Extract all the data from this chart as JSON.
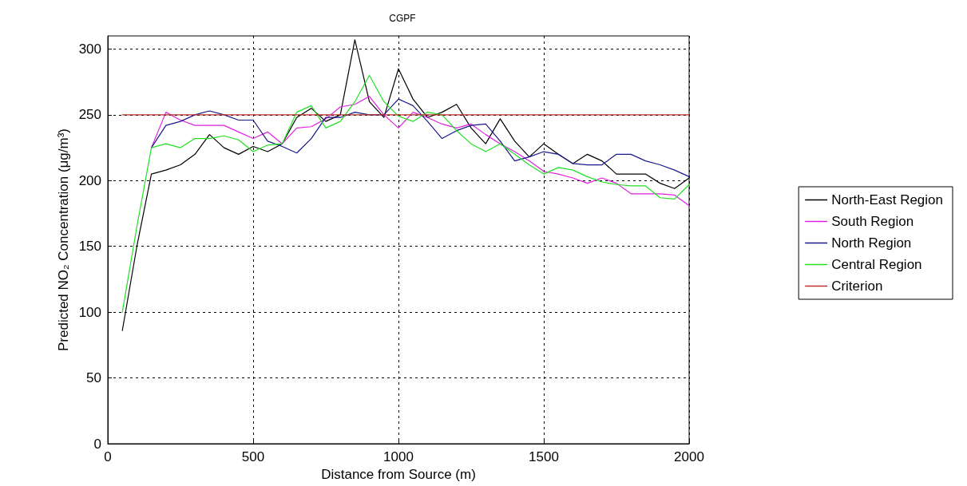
{
  "chart_data": {
    "type": "line",
    "title": "CGPF",
    "xlabel": "Distance from Source (m)",
    "ylabel": "Predicted NO₂ Concentration (μg/m³)",
    "x": [
      50,
      100,
      150,
      200,
      250,
      300,
      350,
      400,
      450,
      500,
      550,
      600,
      650,
      700,
      750,
      800,
      850,
      900,
      950,
      1000,
      1050,
      1100,
      1150,
      1200,
      1250,
      1300,
      1350,
      1400,
      1450,
      1500,
      1550,
      1600,
      1650,
      1700,
      1750,
      1800,
      1850,
      1900,
      1950,
      2000
    ],
    "series": [
      {
        "name": "North-East Region",
        "color": "#000000",
        "values": [
          86,
          150,
          205,
          208,
          212,
          220,
          235,
          225,
          220,
          226,
          222,
          228,
          248,
          255,
          245,
          250,
          307,
          260,
          248,
          285,
          262,
          248,
          252,
          258,
          240,
          228,
          247,
          230,
          218,
          228,
          220,
          213,
          220,
          215,
          205,
          205,
          205,
          198,
          194,
          202
        ]
      },
      {
        "name": "South Region",
        "color": "#e020e0",
        "values": [
          null,
          null,
          225,
          252,
          246,
          242,
          242,
          242,
          237,
          232,
          237,
          228,
          240,
          241,
          247,
          256,
          258,
          264,
          250,
          240,
          252,
          248,
          243,
          240,
          243,
          235,
          228,
          222,
          215,
          207,
          205,
          202,
          198,
          202,
          198,
          190,
          190,
          190,
          189,
          181
        ]
      },
      {
        "name": "North Region",
        "color": "#1a1a8c",
        "values": [
          null,
          null,
          225,
          242,
          245,
          250,
          253,
          250,
          246,
          246,
          230,
          226,
          221,
          232,
          248,
          248,
          252,
          250,
          250,
          262,
          257,
          245,
          232,
          238,
          242,
          243,
          230,
          215,
          218,
          222,
          220,
          213,
          212,
          212,
          220,
          220,
          215,
          212,
          208,
          203
        ]
      },
      {
        "name": "Central Region",
        "color": "#20e020",
        "values": [
          100,
          165,
          225,
          228,
          225,
          232,
          232,
          234,
          231,
          222,
          227,
          228,
          252,
          257,
          240,
          245,
          260,
          280,
          260,
          249,
          245,
          252,
          250,
          238,
          228,
          222,
          228,
          220,
          212,
          205,
          210,
          208,
          203,
          199,
          197,
          196,
          196,
          187,
          186,
          197
        ]
      },
      {
        "name": "Criterion",
        "color": "#c0302a",
        "x": [
          50,
          2000
        ],
        "values": [
          250,
          250
        ]
      }
    ],
    "xlim": [
      0,
      2000
    ],
    "xticks": [
      0,
      500,
      1000,
      1500,
      2000
    ],
    "ylim": [
      0,
      310
    ],
    "yticks": [
      0,
      50,
      100,
      150,
      200,
      250,
      300
    ],
    "grid": true,
    "legend": "right",
    "marker": "none",
    "line_style": "solid"
  }
}
